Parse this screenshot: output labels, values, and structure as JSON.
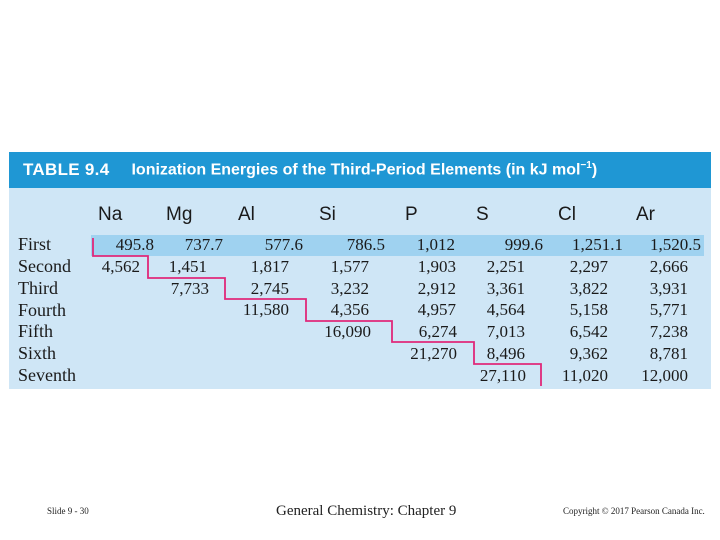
{
  "table": {
    "label": "TABLE 9.4",
    "title": "Ionization Energies of the Third-Period Elements (in kJ mol",
    "title_unit_exp": "−1",
    "title_close": ")",
    "columns": [
      "Na",
      "Mg",
      "Al",
      "Si",
      "P",
      "S",
      "Cl",
      "Ar"
    ],
    "rows": [
      {
        "label": "First",
        "values": [
          "495.8",
          "737.7",
          "577.6",
          "786.5",
          "1,012",
          "999.6",
          "1,251.1",
          "1,520.5"
        ]
      },
      {
        "label": "Second",
        "values": [
          "4,562",
          "1,451",
          "1,817",
          "1,577",
          "1,903",
          "2,251",
          "2,297",
          "2,666"
        ]
      },
      {
        "label": "Third",
        "values": [
          "",
          "7,733",
          "2,745",
          "3,232",
          "2,912",
          "3,361",
          "3,822",
          "3,931"
        ]
      },
      {
        "label": "Fourth",
        "values": [
          "",
          "",
          "11,580",
          "4,356",
          "4,957",
          "4,564",
          "5,158",
          "5,771"
        ]
      },
      {
        "label": "Fifth",
        "values": [
          "",
          "",
          "",
          "16,090",
          "6,274",
          "7,013",
          "6,542",
          "7,238"
        ]
      },
      {
        "label": "Sixth",
        "values": [
          "",
          "",
          "",
          "",
          "21,270",
          "8,496",
          "9,362",
          "8,781"
        ]
      },
      {
        "label": "Seventh",
        "values": [
          "",
          "",
          "",
          "",
          "",
          "27,110",
          "11,020",
          "12,000"
        ]
      }
    ]
  },
  "footer": {
    "slide": "Slide 9 - 30",
    "course": "General Chemistry: Chapter 9",
    "copyright": "Copyright © 2017 Pearson Canada Inc."
  },
  "colors": {
    "title_bar": "#1f97d4",
    "table_bg": "#cfe6f6",
    "first_row_band": "#9fd2f0",
    "staircase_line": "#e0287a"
  }
}
